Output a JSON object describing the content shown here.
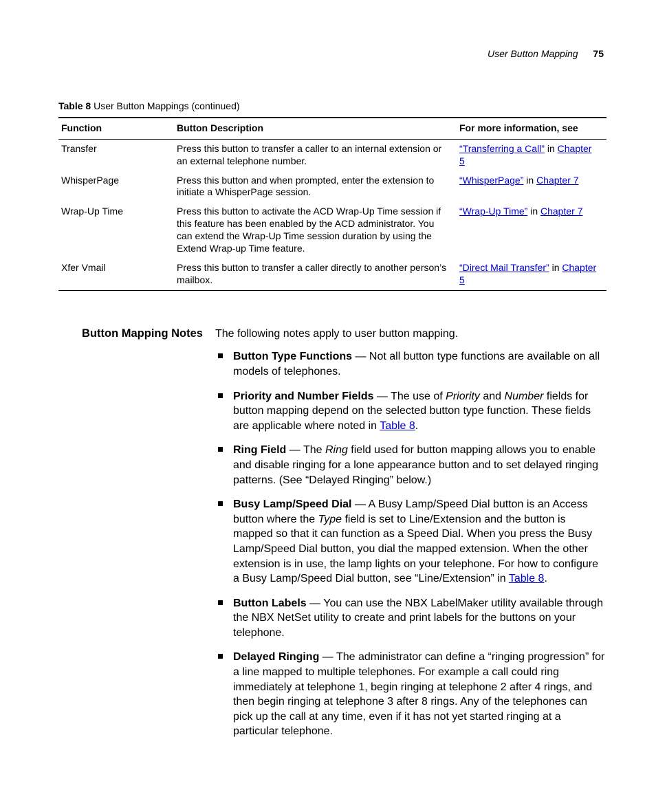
{
  "page": {
    "running_section": "User Button Mapping",
    "page_number": "75"
  },
  "table": {
    "caption_label": "Table 8",
    "caption_rest": "   User Button Mappings (continued)",
    "headers": {
      "function": "Function",
      "description": "Button Description",
      "more_info": "For more information, see"
    },
    "rows": {
      "r0": {
        "fn": "Transfer",
        "desc": "Press this button to transfer a caller to an internal extension or an external telephone number.",
        "link1": "“Transferring a Call”",
        "mid1": " in ",
        "link2": "Chapter 5"
      },
      "r1": {
        "fn": "WhisperPage",
        "desc": "Press this button and when prompted, enter the extension to initiate a WhisperPage session.",
        "link1": "“WhisperPage”",
        "mid1": " in ",
        "link2": "Chapter 7"
      },
      "r2": {
        "fn": "Wrap-Up Time",
        "desc": "Press this button to activate the ACD Wrap-Up Time session if this feature has been enabled by the ACD administrator. You can extend the Wrap-Up Time session duration by using the Extend Wrap-up Time feature.",
        "link1": "“Wrap-Up Time”",
        "mid1": " in ",
        "link2": "Chapter 7"
      },
      "r3": {
        "fn": "Xfer Vmail",
        "desc": "Press this button to transfer a caller directly to another person’s mailbox.",
        "link1": "“Direct Mail Transfer”",
        "mid1": " in ",
        "link2": "Chapter 5"
      }
    }
  },
  "notes": {
    "heading": "Button Mapping Notes",
    "intro": "The following notes apply to user button mapping.",
    "items": {
      "n0": {
        "lead": "Button Type Functions",
        "dash": " — ",
        "body": "Not all button type functions are available on all models of telephones."
      },
      "n1": {
        "lead": "Priority and Number Fields",
        "dash": " — ",
        "pre": "The use of ",
        "it1": "Priority",
        "mid1": " and ",
        "it2": "Number",
        "post": " fields for button mapping depend on the selected button type function. These fields are applicable where noted in ",
        "link": "Table 8",
        "tail": "."
      },
      "n2": {
        "lead": "Ring Field",
        "dash": " — ",
        "pre": "The ",
        "it1": "Ring",
        "post": " field used for button mapping allows you to enable and disable ringing for a lone appearance button and to set delayed ringing patterns. (See “Delayed Ringing” below.)"
      },
      "n3": {
        "lead": "Busy Lamp/Speed Dial",
        "dash": " — ",
        "pre": "A Busy Lamp/Speed Dial button is an Access button where the ",
        "it1": "Type",
        "post": " field is set to Line/Extension and the button is mapped so that it can function as a Speed Dial. When you press the Busy Lamp/Speed Dial button, you dial the mapped extension. When the other extension is in use, the lamp lights on your telephone. For how to configure a Busy Lamp/Speed Dial button, see “Line/Extension” in ",
        "link": "Table 8",
        "tail": "."
      },
      "n4": {
        "lead": "Button Labels",
        "dash": " — ",
        "body": "You can use the NBX LabelMaker utility available through the NBX NetSet utility to create and print labels for the buttons on your telephone."
      },
      "n5": {
        "lead": "Delayed Ringing",
        "dash": " — ",
        "body": "The administrator can define a “ringing progression” for a line mapped to multiple telephones. For example a call could ring immediately at telephone 1, begin ringing at telephone 2 after 4 rings, and then begin ringing at telephone 3 after 8 rings. Any of the telephones can pick up the call at any time, even if it has not yet started ringing at a particular telephone."
      }
    }
  }
}
